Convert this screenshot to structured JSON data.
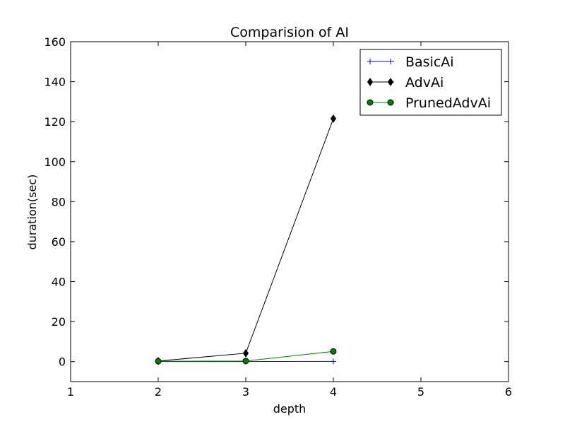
{
  "chart_data": {
    "type": "line",
    "title": "Comparision of AI",
    "xlabel": "depth",
    "ylabel": "duration(sec)",
    "xlim": [
      1,
      6
    ],
    "ylim": [
      -10,
      160
    ],
    "xticks": [
      1,
      2,
      3,
      4,
      5,
      6
    ],
    "yticks": [
      0,
      20,
      40,
      60,
      80,
      100,
      120,
      140,
      160
    ],
    "grid": false,
    "legend_position": "top-right",
    "x": [
      2,
      3,
      4
    ],
    "series": [
      {
        "name": "BasicAi",
        "marker": "plus",
        "color": "#0000ff",
        "values": [
          0.01,
          0.05,
          0.1
        ]
      },
      {
        "name": "AdvAi",
        "marker": "diamond",
        "color": "#000000",
        "values": [
          0.3,
          4.2,
          121.5
        ]
      },
      {
        "name": "PrunedAdvAi",
        "marker": "circle",
        "color": "#008000",
        "values": [
          0.2,
          0.3,
          5.1
        ]
      }
    ]
  }
}
